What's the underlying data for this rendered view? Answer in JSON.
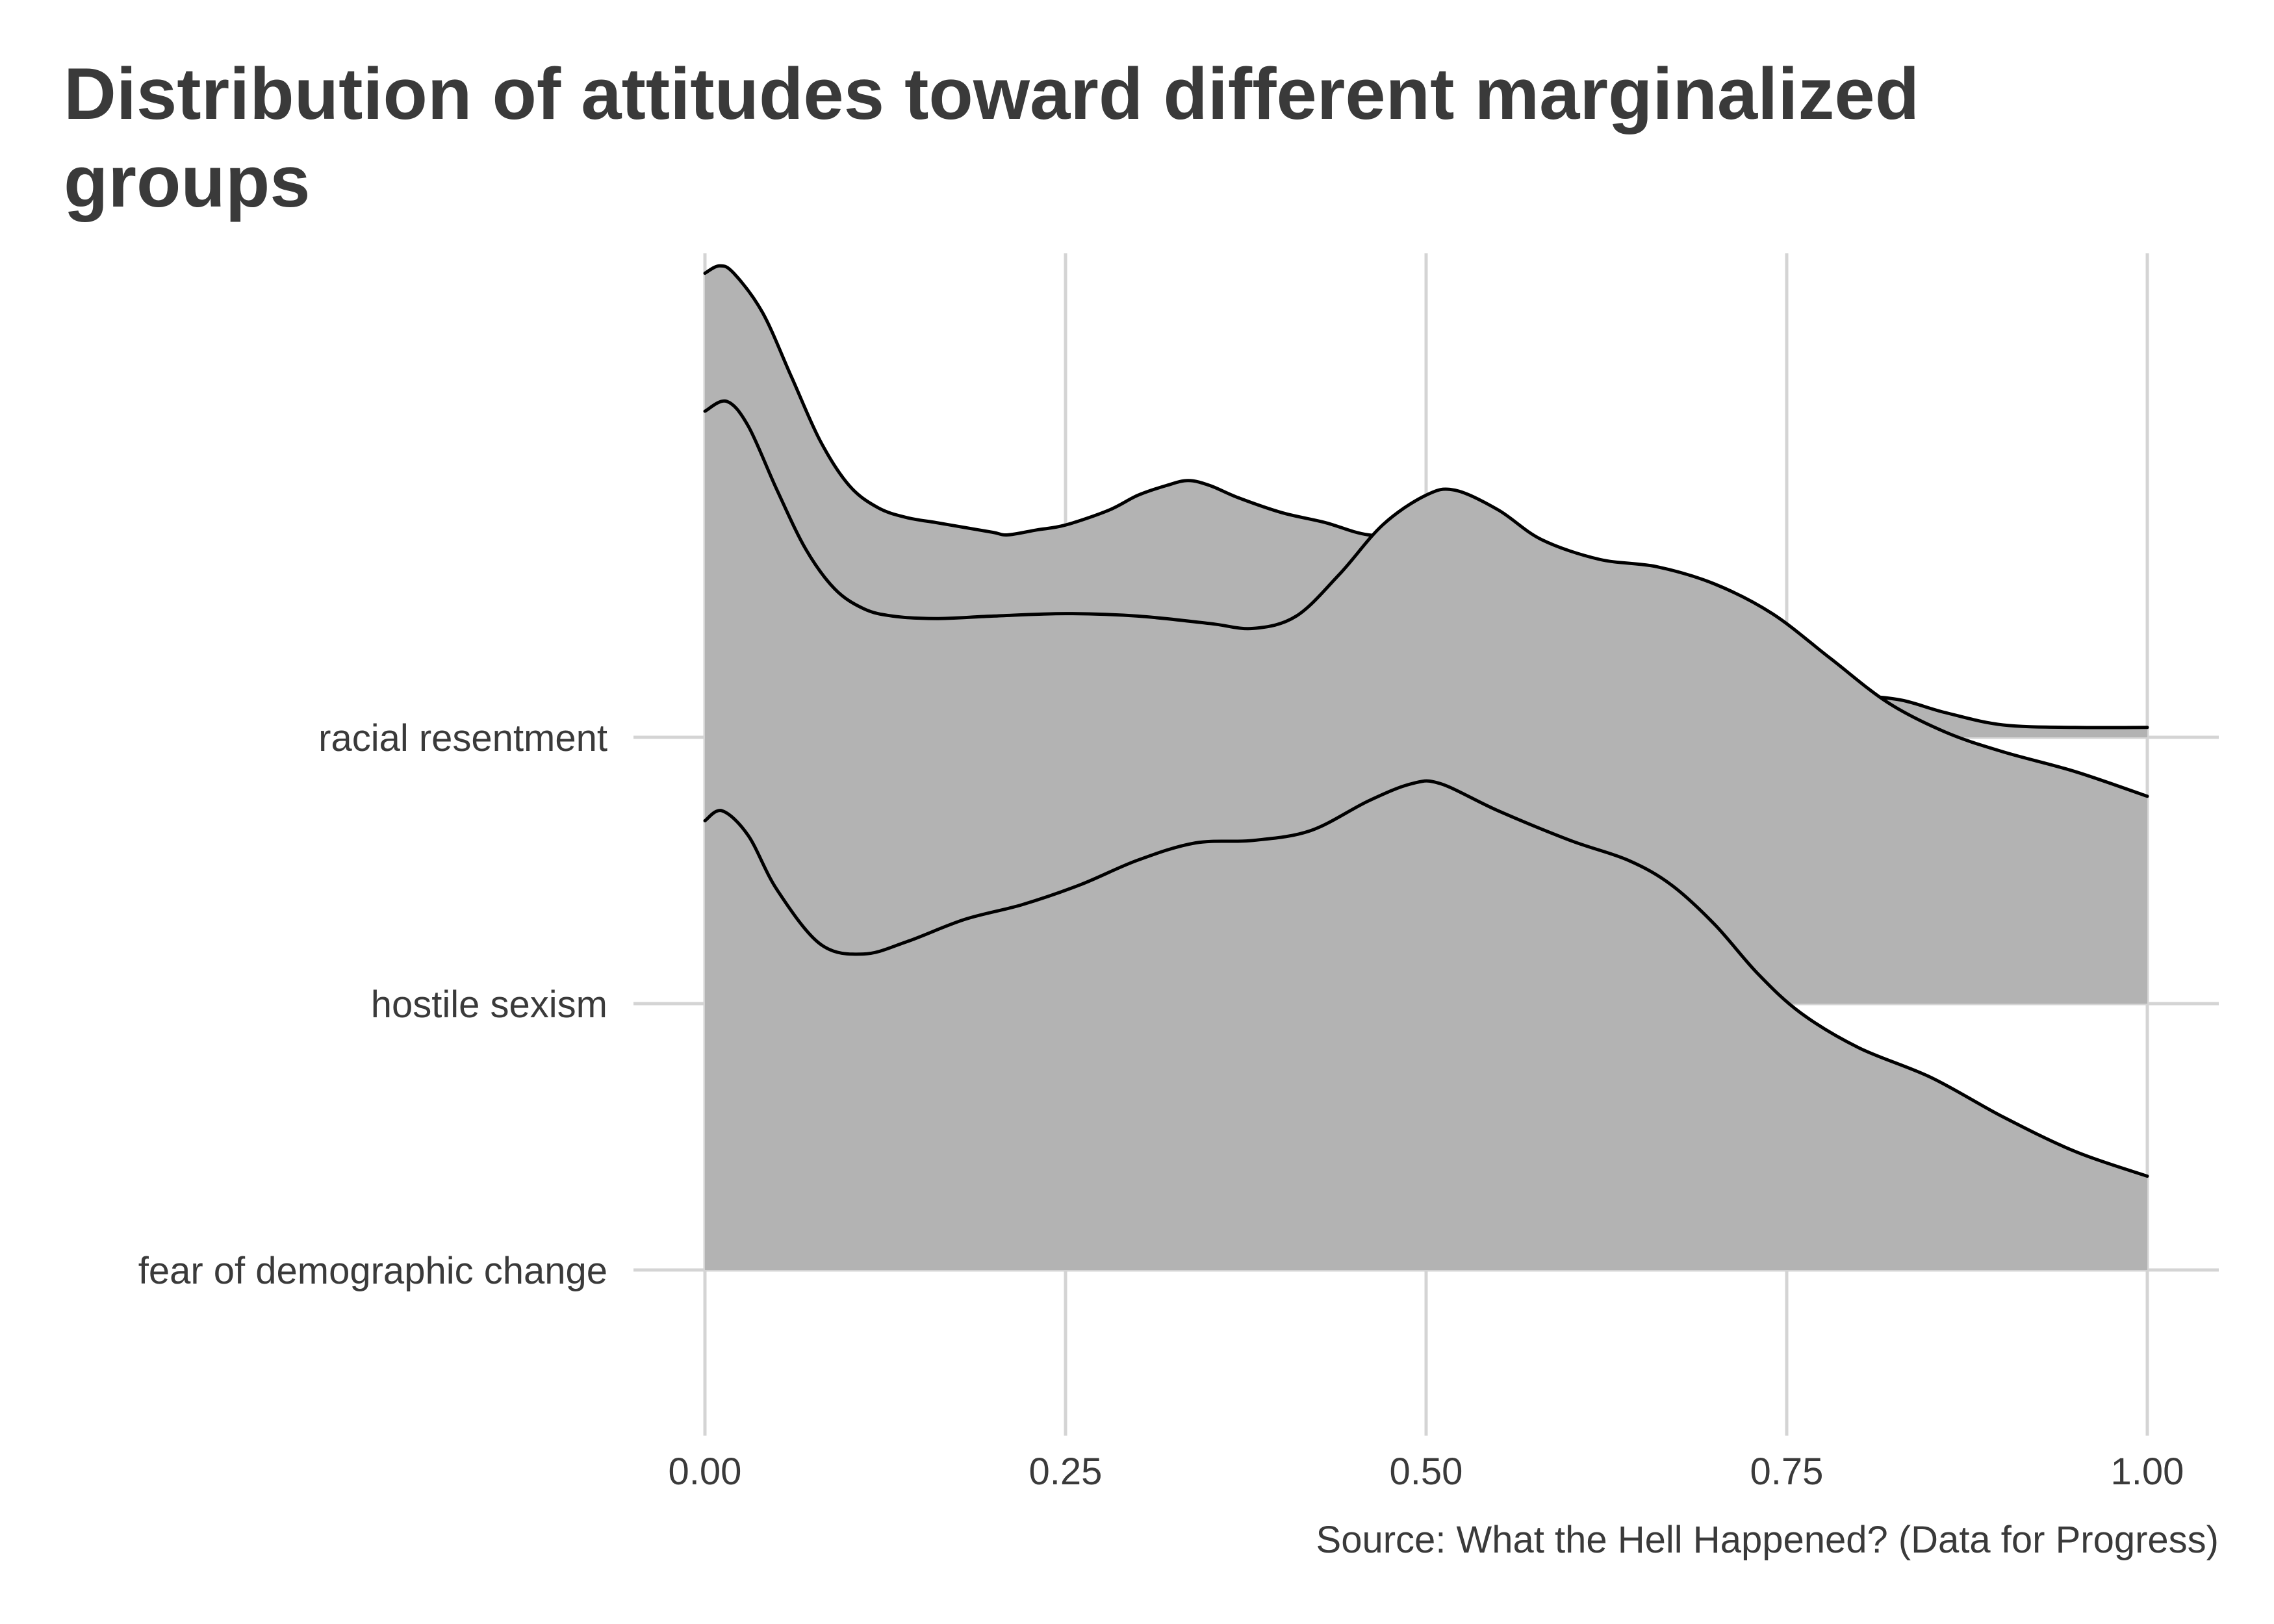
{
  "chart_data": {
    "type": "ridgeline",
    "title_lines": [
      "Distribution of attitudes toward different marginalized",
      "groups"
    ],
    "caption": "Source: What the Hell Happened? (Data for Progress)",
    "xlabel": "",
    "ylabel": "",
    "xlim": [
      0,
      1
    ],
    "x_ticks": [
      {
        "value": 0,
        "label": "0.00"
      },
      {
        "value": 0.25,
        "label": "0.25"
      },
      {
        "value": 0.5,
        "label": "0.50"
      },
      {
        "value": 0.75,
        "label": "0.75"
      },
      {
        "value": 1,
        "label": "1.00"
      }
    ],
    "grid": true,
    "legend": "none",
    "fill_color": "#b3b3b3",
    "line_color": "#000000",
    "grid_color": "#d4d4d4",
    "title_color": "#3a3a3a",
    "label_color": "#3a3a3a",
    "series": [
      {
        "name": "racial resentment",
        "points": [
          [
            0,
            0.94
          ],
          [
            0.01,
            0.955
          ],
          [
            0.02,
            0.94
          ],
          [
            0.04,
            0.86
          ],
          [
            0.06,
            0.73
          ],
          [
            0.08,
            0.6
          ],
          [
            0.1,
            0.51
          ],
          [
            0.12,
            0.465
          ],
          [
            0.14,
            0.445
          ],
          [
            0.16,
            0.435
          ],
          [
            0.18,
            0.425
          ],
          [
            0.2,
            0.415
          ],
          [
            0.21,
            0.41
          ],
          [
            0.23,
            0.42
          ],
          [
            0.25,
            0.43
          ],
          [
            0.28,
            0.46
          ],
          [
            0.3,
            0.49
          ],
          [
            0.32,
            0.51
          ],
          [
            0.335,
            0.52
          ],
          [
            0.35,
            0.51
          ],
          [
            0.37,
            0.485
          ],
          [
            0.4,
            0.455
          ],
          [
            0.43,
            0.435
          ],
          [
            0.46,
            0.41
          ],
          [
            0.5,
            0.405
          ],
          [
            0.52,
            0.39
          ],
          [
            0.55,
            0.36
          ],
          [
            0.58,
            0.335
          ],
          [
            0.6,
            0.31
          ],
          [
            0.63,
            0.28
          ],
          [
            0.66,
            0.255
          ],
          [
            0.68,
            0.22
          ],
          [
            0.7,
            0.175
          ],
          [
            0.72,
            0.135
          ],
          [
            0.74,
            0.11
          ],
          [
            0.76,
            0.095
          ],
          [
            0.8,
            0.085
          ],
          [
            0.83,
            0.075
          ],
          [
            0.86,
            0.05
          ],
          [
            0.9,
            0.025
          ],
          [
            0.95,
            0.02
          ],
          [
            1,
            0.02
          ]
        ]
      },
      {
        "name": "hostile sexism",
        "points": [
          [
            0,
            1.2
          ],
          [
            0.015,
            1.22
          ],
          [
            0.03,
            1.17
          ],
          [
            0.05,
            1.04
          ],
          [
            0.07,
            0.92
          ],
          [
            0.09,
            0.84
          ],
          [
            0.11,
            0.8
          ],
          [
            0.13,
            0.785
          ],
          [
            0.16,
            0.78
          ],
          [
            0.2,
            0.785
          ],
          [
            0.25,
            0.79
          ],
          [
            0.3,
            0.785
          ],
          [
            0.35,
            0.77
          ],
          [
            0.38,
            0.76
          ],
          [
            0.41,
            0.785
          ],
          [
            0.44,
            0.87
          ],
          [
            0.47,
            0.97
          ],
          [
            0.5,
            1.03
          ],
          [
            0.52,
            1.04
          ],
          [
            0.55,
            1.0
          ],
          [
            0.58,
            0.94
          ],
          [
            0.62,
            0.9
          ],
          [
            0.66,
            0.885
          ],
          [
            0.7,
            0.85
          ],
          [
            0.74,
            0.79
          ],
          [
            0.78,
            0.7
          ],
          [
            0.82,
            0.61
          ],
          [
            0.86,
            0.55
          ],
          [
            0.9,
            0.51
          ],
          [
            0.95,
            0.47
          ],
          [
            1,
            0.42
          ]
        ]
      },
      {
        "name": "fear of demographic change",
        "points": [
          [
            0,
            0.91
          ],
          [
            0.012,
            0.93
          ],
          [
            0.03,
            0.88
          ],
          [
            0.05,
            0.77
          ],
          [
            0.08,
            0.66
          ],
          [
            0.11,
            0.64
          ],
          [
            0.14,
            0.665
          ],
          [
            0.18,
            0.71
          ],
          [
            0.22,
            0.74
          ],
          [
            0.26,
            0.78
          ],
          [
            0.3,
            0.83
          ],
          [
            0.34,
            0.865
          ],
          [
            0.38,
            0.87
          ],
          [
            0.42,
            0.89
          ],
          [
            0.46,
            0.95
          ],
          [
            0.49,
            0.985
          ],
          [
            0.51,
            0.985
          ],
          [
            0.55,
            0.93
          ],
          [
            0.6,
            0.87
          ],
          [
            0.64,
            0.83
          ],
          [
            0.67,
            0.78
          ],
          [
            0.7,
            0.7
          ],
          [
            0.73,
            0.6
          ],
          [
            0.76,
            0.52
          ],
          [
            0.8,
            0.45
          ],
          [
            0.85,
            0.39
          ],
          [
            0.9,
            0.31
          ],
          [
            0.95,
            0.24
          ],
          [
            1,
            0.19
          ]
        ]
      }
    ]
  }
}
